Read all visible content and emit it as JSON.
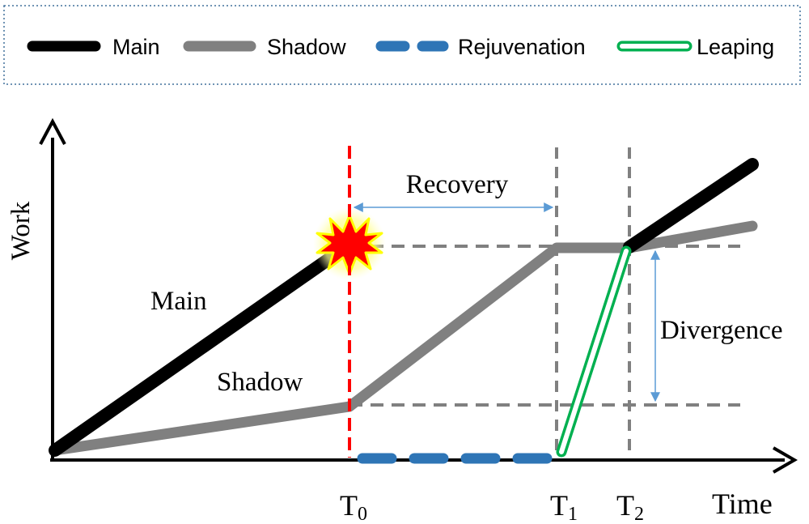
{
  "legend": {
    "items": [
      {
        "label": "Main",
        "style": "main"
      },
      {
        "label": "Shadow",
        "style": "shadow"
      },
      {
        "label": "Rejuvenation",
        "style": "rejuvenation"
      },
      {
        "label": "Leaping",
        "style": "leaping"
      }
    ]
  },
  "axes": {
    "y_label": "Work",
    "x_label": "Time"
  },
  "ticks": {
    "t0": {
      "base": "T",
      "sub": "0"
    },
    "t1": {
      "base": "T",
      "sub": "1"
    },
    "t2": {
      "base": "T",
      "sub": "2"
    }
  },
  "annotations": {
    "recovery": "Recovery",
    "divergence": "Divergence",
    "main_label": "Main",
    "shadow_label": "Shadow"
  },
  "colors": {
    "main": "#000000",
    "shadow": "#808080",
    "rejuvenation": "#2e75b6",
    "leaping": "#00b050",
    "failure_line": "#ff0000",
    "guide": "#808080",
    "arrow": "#5b9bd5",
    "legend_border": "#41719c"
  },
  "icons": {
    "failure": "explosion-icon"
  }
}
